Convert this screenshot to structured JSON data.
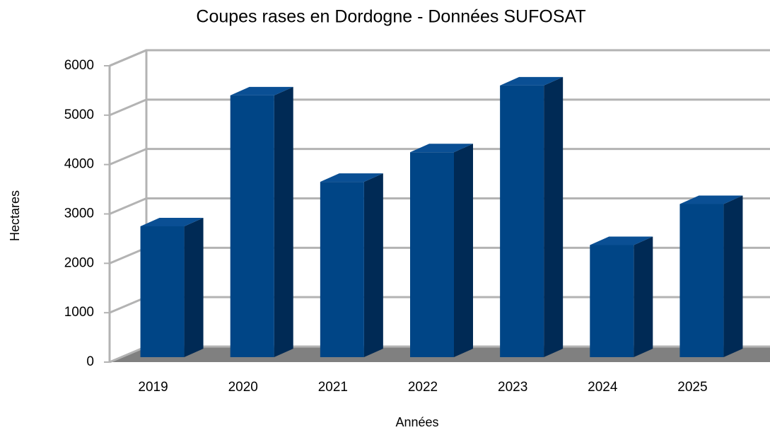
{
  "chart_data": {
    "type": "bar3d",
    "title": "Coupes rases en Dordogne - Données SUFOSAT",
    "x_label": "Années",
    "y_label": "Hectares",
    "categories": [
      "2019",
      "2020",
      "2021",
      "2022",
      "2023",
      "2024",
      "2025"
    ],
    "values": [
      2650,
      5300,
      3550,
      4150,
      5500,
      2270,
      3100
    ],
    "color": "#004586",
    "ylim": [
      0,
      6000
    ],
    "yticks": [
      0,
      1000,
      2000,
      3000,
      4000,
      5000,
      6000
    ],
    "grid": true
  }
}
